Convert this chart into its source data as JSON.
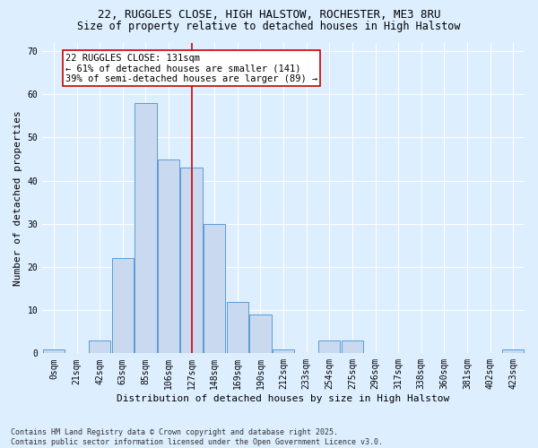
{
  "title_line1": "22, RUGGLES CLOSE, HIGH HALSTOW, ROCHESTER, ME3 8RU",
  "title_line2": "Size of property relative to detached houses in High Halstow",
  "xlabel": "Distribution of detached houses by size in High Halstow",
  "ylabel": "Number of detached properties",
  "categories": [
    "0sqm",
    "21sqm",
    "42sqm",
    "63sqm",
    "85sqm",
    "106sqm",
    "127sqm",
    "148sqm",
    "169sqm",
    "190sqm",
    "212sqm",
    "233sqm",
    "254sqm",
    "275sqm",
    "296sqm",
    "317sqm",
    "338sqm",
    "360sqm",
    "381sqm",
    "402sqm",
    "423sqm"
  ],
  "bar_heights": [
    1,
    0,
    3,
    22,
    58,
    45,
    43,
    30,
    12,
    9,
    1,
    0,
    3,
    3,
    0,
    0,
    0,
    0,
    0,
    0,
    1
  ],
  "bar_color": "#c9d9f0",
  "bar_edge_color": "#5b9bd5",
  "background_color": "#ddeeff",
  "grid_color": "#ffffff",
  "vline_color": "#cc0000",
  "vline_x": 6.0,
  "annotation_text": "22 RUGGLES CLOSE: 131sqm\n← 61% of detached houses are smaller (141)\n39% of semi-detached houses are larger (89) →",
  "annotation_box_color": "#ffffff",
  "annotation_box_edge_color": "#cc0000",
  "ylim": [
    0,
    72
  ],
  "yticks": [
    0,
    10,
    20,
    30,
    40,
    50,
    60,
    70
  ],
  "footer_text": "Contains HM Land Registry data © Crown copyright and database right 2025.\nContains public sector information licensed under the Open Government Licence v3.0.",
  "title_fontsize": 9,
  "subtitle_fontsize": 8.5,
  "axis_label_fontsize": 8,
  "tick_fontsize": 7,
  "annotation_fontsize": 7.5,
  "footer_fontsize": 6
}
